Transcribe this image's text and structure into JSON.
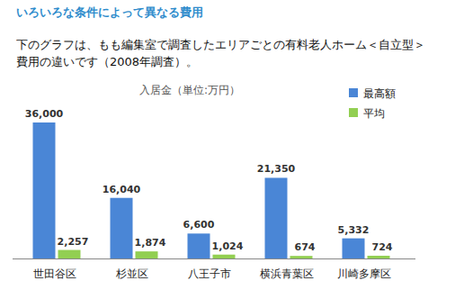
{
  "heading": "いろいろな条件によって異なる費用",
  "description": [
    "下のグラフは、もも編集室で調査したエリアごとの有料老人ホーム＜自立型＞",
    "費用の違いです（2008年調査）。"
  ],
  "chart_data": {
    "type": "bar",
    "title": "入居金（単位:万円）",
    "categories": [
      "世田谷区",
      "杉並区",
      "八王子市",
      "横浜青葉区",
      "川崎多摩区"
    ],
    "series": [
      {
        "name": "最高額",
        "color": "#4a86d6",
        "values": [
          36000,
          16040,
          6600,
          21350,
          5332
        ],
        "value_labels": [
          "36,000",
          "16,040",
          "6,600",
          "21,350",
          "5,332"
        ]
      },
      {
        "name": "平均",
        "color": "#92cf52",
        "values": [
          2257,
          1874,
          1024,
          674,
          724
        ],
        "value_labels": [
          "2,257",
          "1,874",
          "1,024",
          "674",
          "724"
        ]
      }
    ],
    "ylim": [
      0,
      36000
    ],
    "data_labels": true,
    "tick_labels": "x",
    "legend": "top-right",
    "grid": false
  }
}
